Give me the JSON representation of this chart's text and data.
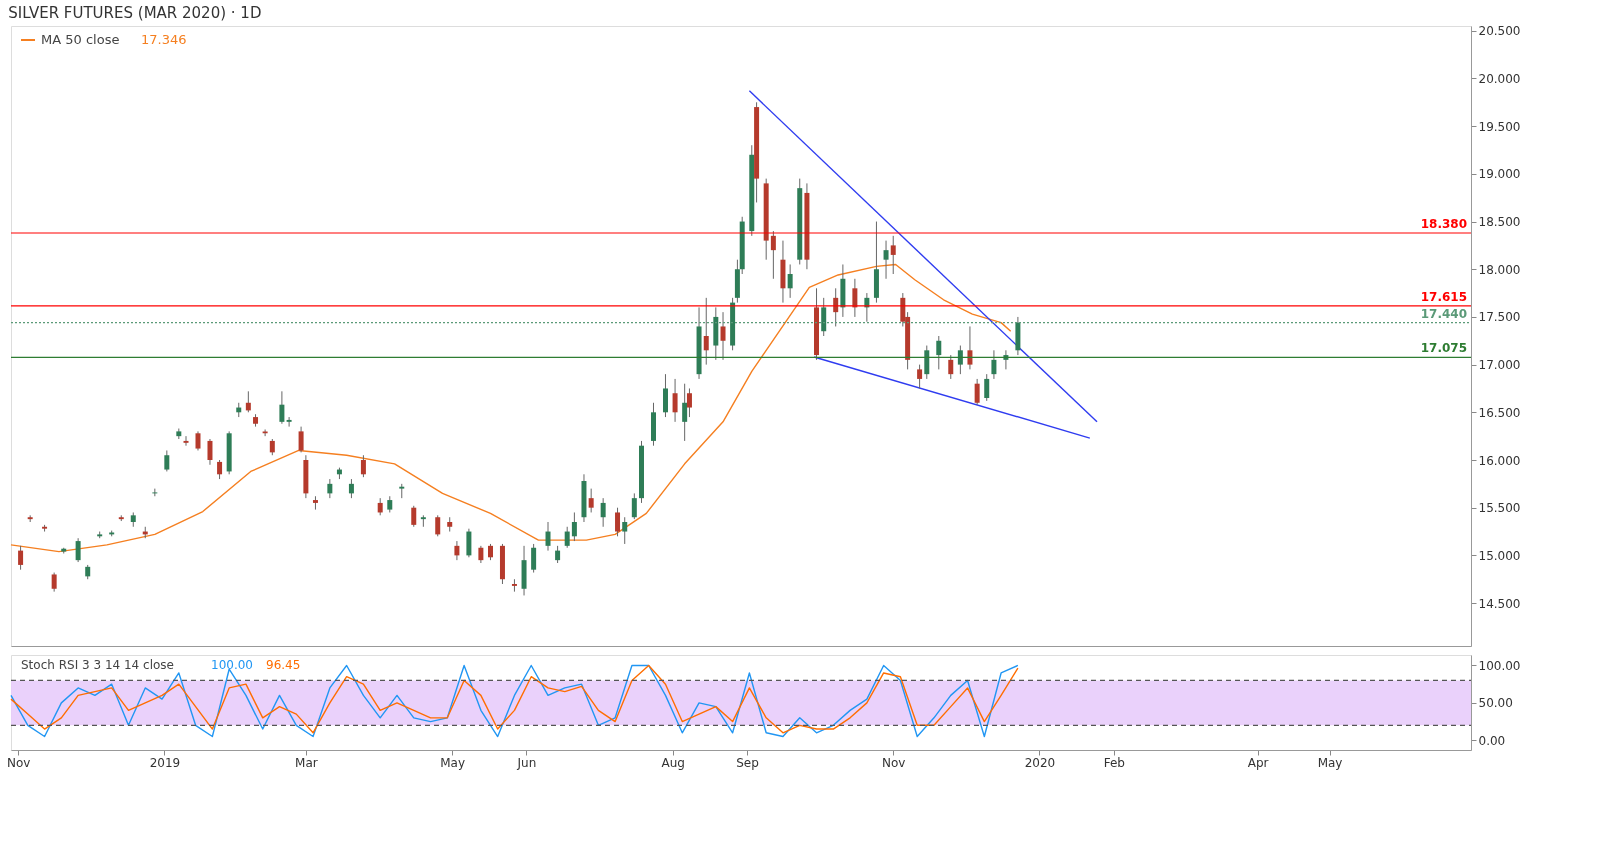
{
  "chart_data": [
    {
      "type": "candlestick",
      "title": "SILVER FUTURES (MAR 2020) · 1D",
      "colors": [
        "#b53a2c",
        "#b53a2c",
        "#b53a2c",
        "#b53a2c",
        "#2e7d57",
        "#2e7d57",
        "#2e7d57",
        "#2e7d57",
        "#2e7d57",
        "#b53a2c",
        "#2e7d57",
        "#b53a2c",
        "#2e7d57",
        "#2e7d57",
        "#2e7d57",
        "#b53a2c",
        "#b53a2c",
        "#b53a2c",
        "#b53a2c",
        "#2e7d57",
        "#2e7d57",
        "#b53a2c",
        "#b53a2c",
        "#b53a2c",
        "#b53a2c",
        "#2e7d57",
        "#2e7d57",
        "#b53a2c",
        "#b53a2c",
        "#b53a2c",
        "#2e7d57",
        "#2e7d57",
        "#2e7d57",
        "#b53a2c",
        "#b53a2c",
        "#2e7d57",
        "#2e7d57",
        "#b53a2c",
        "#2e7d57",
        "#b53a2c",
        "#b53a2c",
        "#b53a2c",
        "#2e7d57",
        "#b53a2c",
        "#b53a2c",
        "#b53a2c",
        "#b53a2c",
        "#2e7d57",
        "#2e7d57",
        "#2e7d57",
        "#2e7d57",
        "#2e7d57",
        "#2e7d57",
        "#2e7d57",
        "#b53a2c",
        "#2e7d57",
        "#b53a2c",
        "#2e7d57",
        "#2e7d57",
        "#2e7d57",
        "#2e7d57",
        "#2e7d57",
        "#b53a2c",
        "#2e7d57",
        "#b53a2c",
        "#2e7d57",
        "#b53a2c",
        "#2e7d57",
        "#b53a2c",
        "#2e7d57",
        "#2e7d57",
        "#2e7d57",
        "#2e7d57",
        "#b53a2c",
        "#b53a2c",
        "#b53a2c",
        "#b53a2c",
        "#2e7d57",
        "#2e7d57",
        "#b53a2c",
        "#b53a2c",
        "#2e7d57",
        "#b53a2c",
        "#2e7d57",
        "#b53a2c",
        "#2e7d57",
        "#2e7d57",
        "#2e7d57",
        "#b53a2c",
        "#b53a2c",
        "#b53a2c",
        "#b53a2c",
        "#2e7d57",
        "#2e7d57",
        "#b53a2c",
        "#2e7d57",
        "#b53a2c",
        "#b53a2c",
        "#2e7d57",
        "#2e7d57",
        "#2e7d57",
        "#2e7d57"
      ],
      "x": [
        "2018-11-02",
        "2018-11-06",
        "2018-11-12",
        "2018-11-16",
        "2018-11-20",
        "2018-11-26",
        "2018-11-30",
        "2018-12-05",
        "2018-12-10",
        "2018-12-14",
        "2018-12-19",
        "2018-12-24",
        "2018-12-28",
        "2019-01-02",
        "2019-01-07",
        "2019-01-10",
        "2019-01-15",
        "2019-01-20",
        "2019-01-24",
        "2019-01-28",
        "2019-02-01",
        "2019-02-05",
        "2019-02-08",
        "2019-02-12",
        "2019-02-15",
        "2019-02-19",
        "2019-02-22",
        "2019-02-27",
        "2019-03-01",
        "2019-03-05",
        "2019-03-11",
        "2019-03-15",
        "2019-03-20",
        "2019-03-25",
        "2019-04-01",
        "2019-04-05",
        "2019-04-10",
        "2019-04-15",
        "2019-04-19",
        "2019-04-25",
        "2019-04-30",
        "2019-05-03",
        "2019-05-08",
        "2019-05-13",
        "2019-05-17",
        "2019-05-22",
        "2019-05-27",
        "2019-05-31",
        "2019-06-04",
        "2019-06-10",
        "2019-06-14",
        "2019-06-18",
        "2019-06-21",
        "2019-06-25",
        "2019-06-28",
        "2019-07-03",
        "2019-07-09",
        "2019-07-12",
        "2019-07-16",
        "2019-07-19",
        "2019-07-24",
        "2019-07-29",
        "2019-08-02",
        "2019-08-06",
        "2019-08-08",
        "2019-08-12",
        "2019-08-15",
        "2019-08-19",
        "2019-08-22",
        "2019-08-26",
        "2019-08-28",
        "2019-08-30",
        "2019-09-03",
        "2019-09-05",
        "2019-09-09",
        "2019-09-12",
        "2019-09-16",
        "2019-09-19",
        "2019-09-23",
        "2019-09-26",
        "2019-09-30",
        "2019-10-03",
        "2019-10-08",
        "2019-10-11",
        "2019-10-16",
        "2019-10-21",
        "2019-10-25",
        "2019-10-29",
        "2019-11-01",
        "2019-11-05",
        "2019-11-07",
        "2019-11-12",
        "2019-11-15",
        "2019-11-20",
        "2019-11-25",
        "2019-11-29",
        "2019-12-03",
        "2019-12-06",
        "2019-12-10",
        "2019-12-13",
        "2019-12-18",
        "2019-12-23"
      ],
      "ohlc": [
        [
          15.05,
          15.1,
          14.85,
          14.9
        ],
        [
          15.4,
          15.42,
          15.35,
          15.38
        ],
        [
          15.3,
          15.32,
          15.25,
          15.28
        ],
        [
          14.8,
          14.82,
          14.62,
          14.65
        ],
        [
          15.04,
          15.08,
          15.02,
          15.07
        ],
        [
          14.95,
          15.18,
          14.93,
          15.15
        ],
        [
          14.78,
          14.9,
          14.75,
          14.88
        ],
        [
          15.2,
          15.25,
          15.18,
          15.22
        ],
        [
          15.22,
          15.26,
          15.2,
          15.24
        ],
        [
          15.4,
          15.42,
          15.36,
          15.38
        ],
        [
          15.35,
          15.45,
          15.3,
          15.42
        ],
        [
          15.25,
          15.3,
          15.18,
          15.22
        ],
        [
          15.65,
          15.7,
          15.62,
          15.66
        ],
        [
          15.9,
          16.1,
          15.88,
          16.05
        ],
        [
          16.25,
          16.33,
          16.22,
          16.3
        ],
        [
          16.2,
          16.25,
          16.15,
          16.18
        ],
        [
          16.28,
          16.3,
          16.1,
          16.12
        ],
        [
          16.2,
          16.22,
          15.95,
          16.0
        ],
        [
          15.98,
          16.0,
          15.8,
          15.85
        ],
        [
          15.88,
          16.3,
          15.85,
          16.28
        ],
        [
          16.5,
          16.6,
          16.45,
          16.55
        ],
        [
          16.6,
          16.72,
          16.5,
          16.52
        ],
        [
          16.45,
          16.48,
          16.35,
          16.38
        ],
        [
          16.3,
          16.32,
          16.25,
          16.28
        ],
        [
          16.2,
          16.22,
          16.05,
          16.08
        ],
        [
          16.4,
          16.72,
          16.38,
          16.58
        ],
        [
          16.4,
          16.45,
          16.35,
          16.42
        ],
        [
          16.3,
          16.35,
          16.08,
          16.1
        ],
        [
          16.0,
          16.05,
          15.6,
          15.65
        ],
        [
          15.58,
          15.62,
          15.48,
          15.55
        ],
        [
          15.65,
          15.8,
          15.6,
          15.75
        ],
        [
          15.85,
          15.92,
          15.8,
          15.9
        ],
        [
          15.65,
          15.8,
          15.6,
          15.75
        ],
        [
          16.0,
          16.05,
          15.82,
          15.85
        ],
        [
          15.55,
          15.6,
          15.42,
          15.45
        ],
        [
          15.48,
          15.62,
          15.45,
          15.58
        ],
        [
          15.7,
          15.75,
          15.6,
          15.72
        ],
        [
          15.5,
          15.52,
          15.3,
          15.32
        ],
        [
          15.38,
          15.42,
          15.3,
          15.4
        ],
        [
          15.4,
          15.42,
          15.2,
          15.22
        ],
        [
          15.35,
          15.4,
          15.25,
          15.3
        ],
        [
          15.1,
          15.15,
          14.95,
          15.0
        ],
        [
          15.0,
          15.28,
          14.98,
          15.25
        ],
        [
          15.08,
          15.1,
          14.92,
          14.95
        ],
        [
          15.1,
          15.12,
          14.95,
          14.98
        ],
        [
          15.1,
          15.12,
          14.7,
          14.75
        ],
        [
          14.7,
          14.75,
          14.62,
          14.68
        ],
        [
          14.65,
          15.1,
          14.58,
          14.95
        ],
        [
          14.85,
          15.12,
          14.82,
          15.08
        ],
        [
          15.1,
          15.35,
          15.05,
          15.25
        ],
        [
          14.95,
          15.1,
          14.92,
          15.05
        ],
        [
          15.1,
          15.3,
          15.08,
          15.25
        ],
        [
          15.2,
          15.45,
          15.15,
          15.35
        ],
        [
          15.4,
          15.85,
          15.35,
          15.78
        ],
        [
          15.6,
          15.7,
          15.45,
          15.5
        ],
        [
          15.4,
          15.6,
          15.3,
          15.55
        ],
        [
          15.45,
          15.5,
          15.2,
          15.25
        ],
        [
          15.25,
          15.4,
          15.12,
          15.35
        ],
        [
          15.4,
          15.65,
          15.38,
          15.6
        ],
        [
          15.6,
          16.2,
          15.55,
          16.15
        ],
        [
          16.2,
          16.6,
          16.15,
          16.5
        ],
        [
          16.5,
          16.9,
          16.45,
          16.75
        ],
        [
          16.7,
          16.85,
          16.4,
          16.5
        ],
        [
          16.4,
          16.8,
          16.2,
          16.6
        ],
        [
          16.7,
          16.75,
          16.45,
          16.55
        ],
        [
          16.9,
          17.6,
          16.85,
          17.4
        ],
        [
          17.3,
          17.7,
          17.0,
          17.15
        ],
        [
          17.2,
          17.6,
          17.05,
          17.5
        ],
        [
          17.4,
          17.55,
          17.05,
          17.25
        ],
        [
          17.2,
          17.7,
          17.15,
          17.65
        ],
        [
          17.7,
          18.1,
          17.65,
          18.0
        ],
        [
          18.0,
          18.55,
          17.95,
          18.5
        ],
        [
          18.4,
          19.3,
          18.35,
          19.2
        ],
        [
          19.7,
          19.75,
          18.7,
          18.95
        ],
        [
          18.9,
          18.95,
          18.1,
          18.3
        ],
        [
          18.35,
          18.4,
          17.9,
          18.2
        ],
        [
          18.1,
          18.3,
          17.65,
          17.8
        ],
        [
          17.8,
          18.05,
          17.7,
          17.95
        ],
        [
          18.1,
          18.95,
          18.05,
          18.85
        ],
        [
          18.8,
          18.9,
          18.0,
          18.1
        ],
        [
          17.6,
          17.8,
          17.05,
          17.1
        ],
        [
          17.35,
          17.7,
          17.3,
          17.6
        ],
        [
          17.7,
          17.8,
          17.4,
          17.55
        ],
        [
          17.6,
          18.05,
          17.5,
          17.9
        ],
        [
          17.8,
          17.9,
          17.5,
          17.6
        ],
        [
          17.6,
          17.75,
          17.45,
          17.7
        ],
        [
          17.7,
          18.5,
          17.65,
          18.0
        ],
        [
          18.1,
          18.3,
          17.9,
          18.2
        ],
        [
          18.25,
          18.35,
          17.95,
          18.15
        ],
        [
          17.7,
          17.75,
          17.4,
          17.45
        ],
        [
          17.5,
          17.55,
          16.95,
          17.05
        ],
        [
          16.95,
          17.0,
          16.75,
          16.85
        ],
        [
          16.9,
          17.2,
          16.85,
          17.15
        ],
        [
          17.1,
          17.3,
          16.95,
          17.25
        ],
        [
          17.05,
          17.1,
          16.85,
          16.9
        ],
        [
          17.0,
          17.2,
          16.9,
          17.15
        ],
        [
          17.15,
          17.4,
          16.95,
          17.0
        ],
        [
          16.8,
          16.85,
          16.58,
          16.6
        ],
        [
          16.65,
          16.9,
          16.62,
          16.85
        ],
        [
          16.9,
          17.15,
          16.85,
          17.05
        ],
        [
          17.05,
          17.15,
          16.95,
          17.1
        ],
        [
          17.15,
          17.5,
          17.1,
          17.44
        ]
      ],
      "series": [
        {
          "type": "line",
          "name": "MA 50 close",
          "color": "#f57f20",
          "x": [
            "2018-10-29",
            "2018-11-18",
            "2018-12-08",
            "2018-12-28",
            "2019-01-17",
            "2019-02-06",
            "2019-02-26",
            "2019-03-18",
            "2019-04-07",
            "2019-04-27",
            "2019-05-17",
            "2019-06-06",
            "2019-06-26",
            "2019-07-08",
            "2019-07-21",
            "2019-08-06",
            "2019-08-22",
            "2019-09-03",
            "2019-09-15",
            "2019-09-27",
            "2019-10-09",
            "2019-10-25",
            "2019-11-02",
            "2019-11-10",
            "2019-11-22",
            "2019-12-04",
            "2019-12-16",
            "2019-12-20"
          ],
          "values": [
            15.11,
            15.04,
            15.11,
            15.22,
            15.46,
            15.88,
            16.1,
            16.05,
            15.96,
            15.65,
            15.44,
            15.16,
            15.16,
            15.22,
            15.44,
            15.96,
            16.4,
            16.93,
            17.37,
            17.81,
            17.94,
            18.03,
            18.05,
            17.89,
            17.68,
            17.53,
            17.44,
            17.35
          ]
        },
        {
          "type": "line",
          "color": "#2f3cf0",
          "x": [
            "2019-09-02",
            "2020-01-25"
          ],
          "values": [
            19.87,
            16.4
          ]
        },
        {
          "type": "line",
          "color": "#2f3cf0",
          "x": [
            "2019-09-29",
            "2020-01-22"
          ],
          "values": [
            17.08,
            16.23
          ]
        }
      ],
      "ref_lines": [
        {
          "axis": "y",
          "value": 18.38,
          "label": "18.380",
          "color": "#ff0000",
          "line_style": "solid"
        },
        {
          "axis": "y",
          "value": 17.615,
          "label": "17.615",
          "color": "#ff0000",
          "line_style": "solid"
        },
        {
          "axis": "y",
          "value": 17.44,
          "label": "17.440",
          "color": "#5b9a78",
          "line_style": "dotted"
        },
        {
          "axis": "y",
          "value": 17.075,
          "label": "17.075",
          "color": "#2e7d32",
          "line_style": "solid"
        }
      ],
      "annotations": [
        "17.346"
      ],
      "xlim": [
        "2018-10-29",
        "2020-06-29"
      ],
      "ylim": [
        14.05,
        20.55
      ],
      "yticks": [
        {
          "value": 14.5,
          "label": "14.500"
        },
        {
          "value": 15,
          "label": "15.000"
        },
        {
          "value": 15.5,
          "label": "15.500"
        },
        {
          "value": 16,
          "label": "16.000"
        },
        {
          "value": 16.5,
          "label": "16.500"
        },
        {
          "value": 17,
          "label": "17.000"
        },
        {
          "value": 17.5,
          "label": "17.500"
        },
        {
          "value": 18,
          "label": "18.000"
        },
        {
          "value": 18.5,
          "label": "18.500"
        },
        {
          "value": 19,
          "label": "19.000"
        },
        {
          "value": 19.5,
          "label": "19.500"
        },
        {
          "value": 20,
          "label": "20.000"
        },
        {
          "value": 20.5,
          "label": "20.500"
        }
      ],
      "tick_labels": "y",
      "legend": "top left",
      "grid": false
    },
    {
      "type": "line",
      "title": "Stoch RSI 3 3 14 14 close",
      "x": [
        "2018-10-29",
        "2018-11-05",
        "2018-11-12",
        "2018-11-19",
        "2018-11-26",
        "2018-12-03",
        "2018-12-10",
        "2018-12-17",
        "2018-12-24",
        "2018-12-31",
        "2019-01-07",
        "2019-01-14",
        "2019-01-21",
        "2019-01-28",
        "2019-02-04",
        "2019-02-11",
        "2019-02-18",
        "2019-02-25",
        "2019-03-04",
        "2019-03-11",
        "2019-03-18",
        "2019-03-25",
        "2019-04-01",
        "2019-04-08",
        "2019-04-15",
        "2019-04-22",
        "2019-04-29",
        "2019-05-06",
        "2019-05-13",
        "2019-05-20",
        "2019-05-27",
        "2019-06-03",
        "2019-06-10",
        "2019-06-17",
        "2019-06-24",
        "2019-07-01",
        "2019-07-08",
        "2019-07-15",
        "2019-07-22",
        "2019-07-29",
        "2019-08-05",
        "2019-08-12",
        "2019-08-19",
        "2019-08-26",
        "2019-09-02",
        "2019-09-09",
        "2019-09-16",
        "2019-09-23",
        "2019-09-30",
        "2019-10-07",
        "2019-10-14",
        "2019-10-21",
        "2019-10-28",
        "2019-11-04",
        "2019-11-11",
        "2019-11-18",
        "2019-11-25",
        "2019-12-02",
        "2019-12-09",
        "2019-12-16",
        "2019-12-23"
      ],
      "series": [
        {
          "color": "#2196f3",
          "values": [
            60,
            20,
            5,
            50,
            70,
            60,
            75,
            20,
            70,
            55,
            90,
            20,
            5,
            95,
            60,
            15,
            60,
            20,
            5,
            70,
            100,
            60,
            30,
            60,
            30,
            25,
            30,
            100,
            40,
            5,
            60,
            100,
            60,
            70,
            75,
            20,
            30,
            100,
            100,
            60,
            10,
            50,
            45,
            10,
            90,
            10,
            5,
            30,
            10,
            20,
            40,
            55,
            100,
            80,
            5,
            30,
            60,
            80,
            5,
            90,
            100
          ]
        },
        {
          "color": "#ff6d00",
          "values": [
            55,
            35,
            15,
            30,
            60,
            65,
            70,
            40,
            50,
            60,
            75,
            45,
            15,
            70,
            75,
            30,
            45,
            35,
            10,
            50,
            85,
            75,
            40,
            50,
            40,
            30,
            30,
            80,
            60,
            15,
            40,
            85,
            70,
            65,
            72,
            40,
            25,
            80,
            100,
            75,
            25,
            35,
            45,
            25,
            70,
            30,
            10,
            20,
            15,
            15,
            30,
            50,
            90,
            85,
            20,
            20,
            45,
            70,
            25,
            60,
            96.45
          ]
        }
      ],
      "annotations": [
        "100.00",
        "96.45"
      ],
      "bands": [
        {
          "axis": "y",
          "from": 20,
          "to": 80,
          "color": "#e8ccfb"
        }
      ],
      "ref_lines": [
        {
          "axis": "y",
          "value": 20,
          "color": "#555555",
          "line_style": "dashed"
        },
        {
          "axis": "y",
          "value": 80,
          "color": "#555555",
          "line_style": "dashed"
        }
      ],
      "xlim": [
        "2018-10-29",
        "2020-06-29"
      ],
      "ylim": [
        -13,
        114
      ],
      "yticks": [
        {
          "value": 0,
          "label": "0.00"
        },
        {
          "value": 50,
          "label": "50.00"
        },
        {
          "value": 100,
          "label": "100.00"
        }
      ],
      "xticks": [
        {
          "value": "2018-11-01",
          "label": "Nov"
        },
        {
          "value": "2019-01-01",
          "label": "2019"
        },
        {
          "value": "2019-03-01",
          "label": "Mar"
        },
        {
          "value": "2019-05-01",
          "label": "May"
        },
        {
          "value": "2019-06-01",
          "label": "Jun"
        },
        {
          "value": "2019-08-01",
          "label": "Aug"
        },
        {
          "value": "2019-09-01",
          "label": "Sep"
        },
        {
          "value": "2019-11-01",
          "label": "Nov"
        },
        {
          "value": "2020-01-01",
          "label": "2020"
        },
        {
          "value": "2020-02-01",
          "label": "Feb"
        },
        {
          "value": "2020-04-01",
          "label": "Apr"
        },
        {
          "value": "2020-05-01",
          "label": "May"
        }
      ],
      "grid": false
    }
  ]
}
